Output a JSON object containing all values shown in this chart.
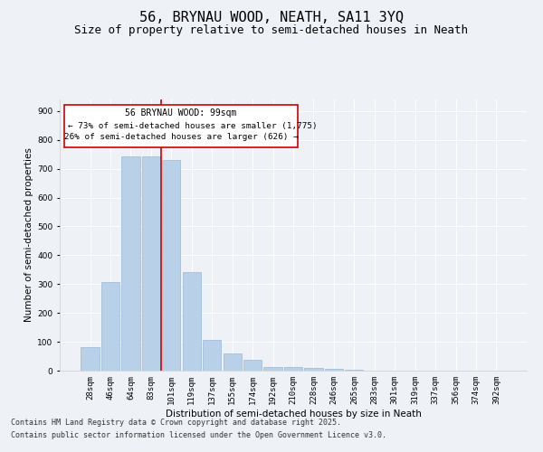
{
  "title": "56, BRYNAU WOOD, NEATH, SA11 3YQ",
  "subtitle": "Size of property relative to semi-detached houses in Neath",
  "xlabel": "Distribution of semi-detached houses by size in Neath",
  "ylabel": "Number of semi-detached properties",
  "categories": [
    "28sqm",
    "46sqm",
    "64sqm",
    "83sqm",
    "101sqm",
    "119sqm",
    "137sqm",
    "155sqm",
    "174sqm",
    "192sqm",
    "210sqm",
    "228sqm",
    "246sqm",
    "265sqm",
    "283sqm",
    "301sqm",
    "319sqm",
    "337sqm",
    "356sqm",
    "374sqm",
    "392sqm"
  ],
  "values": [
    80,
    308,
    743,
    743,
    730,
    340,
    107,
    60,
    37,
    13,
    11,
    8,
    5,
    2,
    1,
    0,
    0,
    0,
    0,
    0,
    0
  ],
  "bar_color": "#b8d0e8",
  "bar_edge_color": "#9ab8d8",
  "vline_color": "#cc0000",
  "vline_pos": 3.5,
  "annotation_title": "56 BRYNAU WOOD: 99sqm",
  "annotation_line1": "← 73% of semi-detached houses are smaller (1,775)",
  "annotation_line2": "26% of semi-detached houses are larger (626) →",
  "annotation_box_color": "#cc0000",
  "ylim": [
    0,
    940
  ],
  "yticks": [
    0,
    100,
    200,
    300,
    400,
    500,
    600,
    700,
    800,
    900
  ],
  "background_color": "#eef2f7",
  "grid_color": "#ffffff",
  "footer_line1": "Contains HM Land Registry data © Crown copyright and database right 2025.",
  "footer_line2": "Contains public sector information licensed under the Open Government Licence v3.0.",
  "title_fontsize": 11,
  "subtitle_fontsize": 9,
  "axis_label_fontsize": 7.5,
  "tick_fontsize": 6.5,
  "annotation_fontsize": 7,
  "footer_fontsize": 6
}
